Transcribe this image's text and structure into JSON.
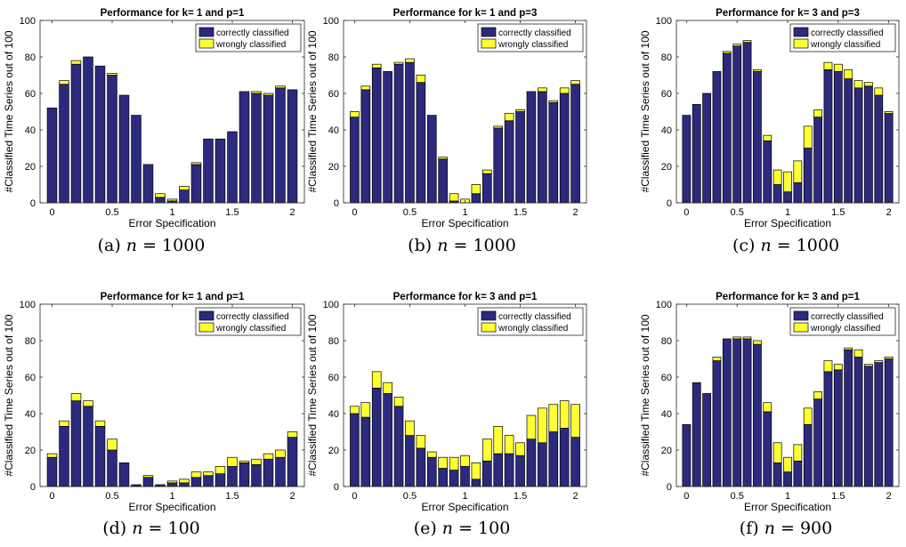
{
  "colors": {
    "correct": "#2b2a7c",
    "wrong": "#ffff33",
    "edge": "#000000",
    "axis": "#262626"
  },
  "panel_captions": [
    {
      "label": "(a)",
      "var": "n",
      "op": "=",
      "value": "1000"
    },
    {
      "label": "(b)",
      "var": "n",
      "op": "=",
      "value": "1000"
    },
    {
      "label": "(c)",
      "var": "n",
      "op": "=",
      "value": "1000"
    },
    {
      "label": "(d)",
      "var": "n",
      "op": "=",
      "value": "100"
    },
    {
      "label": "(e)",
      "var": "n",
      "op": "=",
      "value": "100"
    },
    {
      "label": "(f)",
      "var": "n",
      "op": "=",
      "value": "900"
    }
  ],
  "chart_data": [
    {
      "type": "bar",
      "stacked": true,
      "title": "Performance for k= 1 and p=1",
      "xlabel": "Error Specification",
      "ylabel": "#Classified Time Series out of 100",
      "ylim": [
        0,
        100
      ],
      "xlim": [
        -0.1,
        2.1
      ],
      "xticks": [
        0,
        0.5,
        1,
        1.5,
        2
      ],
      "xtick_labels": [
        "0",
        "0.5",
        "1",
        "1.5",
        "2"
      ],
      "yticks": [
        0,
        20,
        40,
        60,
        80,
        100
      ],
      "ytick_labels": [
        "0",
        "20",
        "40",
        "60",
        "80",
        "100"
      ],
      "legend_position": "top-right",
      "x": [
        0,
        0.1,
        0.2,
        0.3,
        0.4,
        0.5,
        0.6,
        0.7,
        0.8,
        0.9,
        1.0,
        1.1,
        1.2,
        1.3,
        1.4,
        1.5,
        1.6,
        1.7,
        1.8,
        1.9,
        2.0
      ],
      "series": [
        {
          "name": "correctly classified",
          "values": [
            52,
            65,
            76,
            80,
            75,
            70,
            59,
            48,
            21,
            3,
            1,
            7,
            21,
            35,
            35,
            39,
            61,
            60,
            59,
            63,
            62
          ]
        },
        {
          "name": "wrongly classified",
          "values": [
            0,
            2,
            2,
            0,
            0,
            1,
            0,
            0,
            0,
            2,
            1,
            2,
            1,
            0,
            0,
            0,
            0,
            1,
            1,
            1,
            0
          ]
        }
      ]
    },
    {
      "type": "bar",
      "stacked": true,
      "title": "Performance for k= 1 and p=3",
      "xlabel": "Error Specification",
      "ylabel": "#Classified Time Series out of 100",
      "ylim": [
        0,
        100
      ],
      "xlim": [
        -0.1,
        2.1
      ],
      "xticks": [
        0,
        0.5,
        1,
        1.5,
        2
      ],
      "xtick_labels": [
        "0",
        "0.5",
        "1",
        "1.5",
        "2"
      ],
      "yticks": [
        0,
        20,
        40,
        60,
        80,
        100
      ],
      "ytick_labels": [
        "0",
        "20",
        "40",
        "60",
        "80",
        "100"
      ],
      "legend_position": "top-right",
      "x": [
        0,
        0.1,
        0.2,
        0.3,
        0.4,
        0.5,
        0.6,
        0.7,
        0.8,
        0.9,
        1.0,
        1.1,
        1.2,
        1.3,
        1.4,
        1.5,
        1.6,
        1.7,
        1.8,
        1.9,
        2.0
      ],
      "series": [
        {
          "name": "correctly classified",
          "values": [
            47,
            62,
            74,
            72,
            76,
            77,
            66,
            48,
            24,
            1,
            0,
            5,
            16,
            41,
            45,
            50,
            61,
            61,
            55,
            60,
            65
          ]
        },
        {
          "name": "wrongly classified",
          "values": [
            3,
            2,
            2,
            0,
            1,
            2,
            4,
            0,
            1,
            4,
            2,
            5,
            2,
            1,
            4,
            1,
            0,
            2,
            1,
            3,
            2
          ]
        }
      ]
    },
    {
      "type": "bar",
      "stacked": true,
      "title": "Performance for k= 3 and p=3",
      "xlabel": "Error Specification",
      "ylabel": "#Classified Time Series out of 100",
      "ylim": [
        0,
        100
      ],
      "xlim": [
        -0.1,
        2.1
      ],
      "xticks": [
        0,
        0.5,
        1,
        1.5,
        2
      ],
      "xtick_labels": [
        "0",
        "0.5",
        "1",
        "1.5",
        "2"
      ],
      "yticks": [
        0,
        20,
        40,
        60,
        80,
        100
      ],
      "ytick_labels": [
        "0",
        "20",
        "40",
        "60",
        "80",
        "100"
      ],
      "legend_position": "top-right",
      "x": [
        0,
        0.1,
        0.2,
        0.3,
        0.4,
        0.5,
        0.6,
        0.7,
        0.8,
        0.9,
        1.0,
        1.1,
        1.2,
        1.3,
        1.4,
        1.5,
        1.6,
        1.7,
        1.8,
        1.9,
        2.0
      ],
      "series": [
        {
          "name": "correctly classified",
          "values": [
            48,
            54,
            60,
            72,
            82,
            86,
            88,
            72,
            34,
            10,
            6,
            11,
            30,
            47,
            73,
            72,
            68,
            63,
            64,
            59,
            49
          ]
        },
        {
          "name": "wrongly classified",
          "values": [
            0,
            0,
            0,
            0,
            1,
            1,
            1,
            1,
            3,
            8,
            11,
            12,
            12,
            4,
            4,
            4,
            5,
            4,
            2,
            4,
            1
          ]
        }
      ]
    },
    {
      "type": "bar",
      "stacked": true,
      "title": "Performance for k= 1 and p=1",
      "xlabel": "Error Specification",
      "ylabel": "#Classified Time Series out of 100",
      "ylim": [
        0,
        100
      ],
      "xlim": [
        -0.1,
        2.1
      ],
      "xticks": [
        0,
        0.5,
        1,
        1.5,
        2
      ],
      "xtick_labels": [
        "0",
        "0.5",
        "1",
        "1.5",
        "2"
      ],
      "yticks": [
        0,
        20,
        40,
        60,
        80,
        100
      ],
      "ytick_labels": [
        "0",
        "20",
        "40",
        "60",
        "80",
        "100"
      ],
      "legend_position": "top-right",
      "x": [
        0,
        0.1,
        0.2,
        0.3,
        0.4,
        0.5,
        0.6,
        0.7,
        0.8,
        0.9,
        1.0,
        1.1,
        1.2,
        1.3,
        1.4,
        1.5,
        1.6,
        1.7,
        1.8,
        1.9,
        2.0
      ],
      "series": [
        {
          "name": "correctly classified",
          "values": [
            16,
            33,
            47,
            44,
            33,
            20,
            13,
            1,
            5,
            1,
            2,
            2,
            5,
            6,
            7,
            11,
            13,
            12,
            15,
            16,
            27
          ]
        },
        {
          "name": "wrongly classified",
          "values": [
            2,
            3,
            4,
            3,
            3,
            6,
            0,
            0,
            1,
            0,
            1,
            2,
            3,
            2,
            4,
            5,
            1,
            3,
            3,
            4,
            3
          ]
        }
      ]
    },
    {
      "type": "bar",
      "stacked": true,
      "title": "Performance for k= 3 and p=1",
      "xlabel": "Error Specification",
      "ylabel": "#Classified Time Series out of 100",
      "ylim": [
        0,
        100
      ],
      "xlim": [
        -0.1,
        2.1
      ],
      "xticks": [
        0,
        0.5,
        1,
        1.5,
        2
      ],
      "xtick_labels": [
        "0",
        "0.5",
        "1",
        "1.5",
        "2"
      ],
      "yticks": [
        0,
        20,
        40,
        60,
        80,
        100
      ],
      "ytick_labels": [
        "0",
        "20",
        "40",
        "60",
        "80",
        "100"
      ],
      "legend_position": "top-right",
      "x": [
        0,
        0.1,
        0.2,
        0.3,
        0.4,
        0.5,
        0.6,
        0.7,
        0.8,
        0.9,
        1.0,
        1.1,
        1.2,
        1.3,
        1.4,
        1.5,
        1.6,
        1.7,
        1.8,
        1.9,
        2.0
      ],
      "series": [
        {
          "name": "correctly classified",
          "values": [
            40,
            38,
            54,
            51,
            44,
            28,
            21,
            16,
            10,
            9,
            11,
            4,
            14,
            18,
            18,
            17,
            26,
            24,
            30,
            32,
            27
          ]
        },
        {
          "name": "wrongly classified",
          "values": [
            4,
            8,
            9,
            6,
            5,
            8,
            7,
            3,
            6,
            7,
            6,
            9,
            12,
            15,
            10,
            7,
            13,
            19,
            15,
            15,
            18
          ]
        }
      ]
    },
    {
      "type": "bar",
      "stacked": true,
      "title": "Performance for k= 3 and p=1",
      "xlabel": "Error Specification",
      "ylabel": "#Classified Time Series out of 100",
      "ylim": [
        0,
        100
      ],
      "xlim": [
        -0.1,
        2.1
      ],
      "xticks": [
        0,
        0.5,
        1,
        1.5,
        2
      ],
      "xtick_labels": [
        "0",
        "0.5",
        "1",
        "1.5",
        "2"
      ],
      "yticks": [
        0,
        20,
        40,
        60,
        80,
        100
      ],
      "ytick_labels": [
        "0",
        "20",
        "40",
        "60",
        "80",
        "100"
      ],
      "legend_position": "top-right",
      "x": [
        0,
        0.1,
        0.2,
        0.3,
        0.4,
        0.5,
        0.6,
        0.7,
        0.8,
        0.9,
        1.0,
        1.1,
        1.2,
        1.3,
        1.4,
        1.5,
        1.6,
        1.7,
        1.8,
        1.9,
        2.0
      ],
      "series": [
        {
          "name": "correctly classified",
          "values": [
            34,
            57,
            51,
            69,
            81,
            81,
            81,
            78,
            41,
            13,
            8,
            14,
            34,
            48,
            63,
            64,
            75,
            71,
            66,
            68,
            70
          ]
        },
        {
          "name": "wrongly classified",
          "values": [
            0,
            0,
            0,
            2,
            0,
            1,
            1,
            2,
            5,
            11,
            8,
            9,
            9,
            4,
            6,
            3,
            1,
            4,
            1,
            1,
            1
          ]
        }
      ]
    }
  ]
}
